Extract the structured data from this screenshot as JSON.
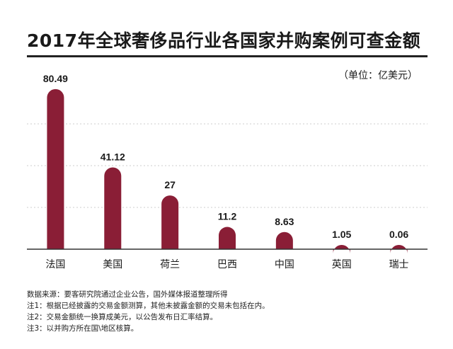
{
  "title": "2017年全球奢侈品行业各国家并购案例可查金额",
  "unit": "（单位：亿美元）",
  "colors": {
    "bar": "#8a1e36",
    "grid": "#cccccc",
    "axis": "#333333"
  },
  "chart_data": {
    "type": "bar",
    "categories": [
      "法国",
      "美国",
      "荷兰",
      "巴西",
      "中国",
      "英国",
      "瑞士"
    ],
    "values": [
      80.49,
      41.12,
      27,
      11.2,
      8.63,
      1.05,
      0.06
    ],
    "value_labels": [
      "80.49",
      "41.12",
      "27",
      "11.2",
      "8.63",
      "1.05",
      "0.06"
    ],
    "title": "2017年全球奢侈品行业各国家并购案例可查金额",
    "xlabel": "",
    "ylabel": "",
    "unit": "（单位：亿美元）",
    "ylim": [
      0,
      84
    ],
    "grid": true,
    "legend": "none"
  },
  "notes": [
    "数据来源：要客研究院通过企业公告，国外媒体报道整理所得",
    "注1：根据已经披露的交易金额测算，其他未披露金额的交易未包括在内。",
    "注2：交易金额统一换算成美元，以公告发布日汇率结算。",
    "注3：以并购方所在国\\地区核算。"
  ]
}
